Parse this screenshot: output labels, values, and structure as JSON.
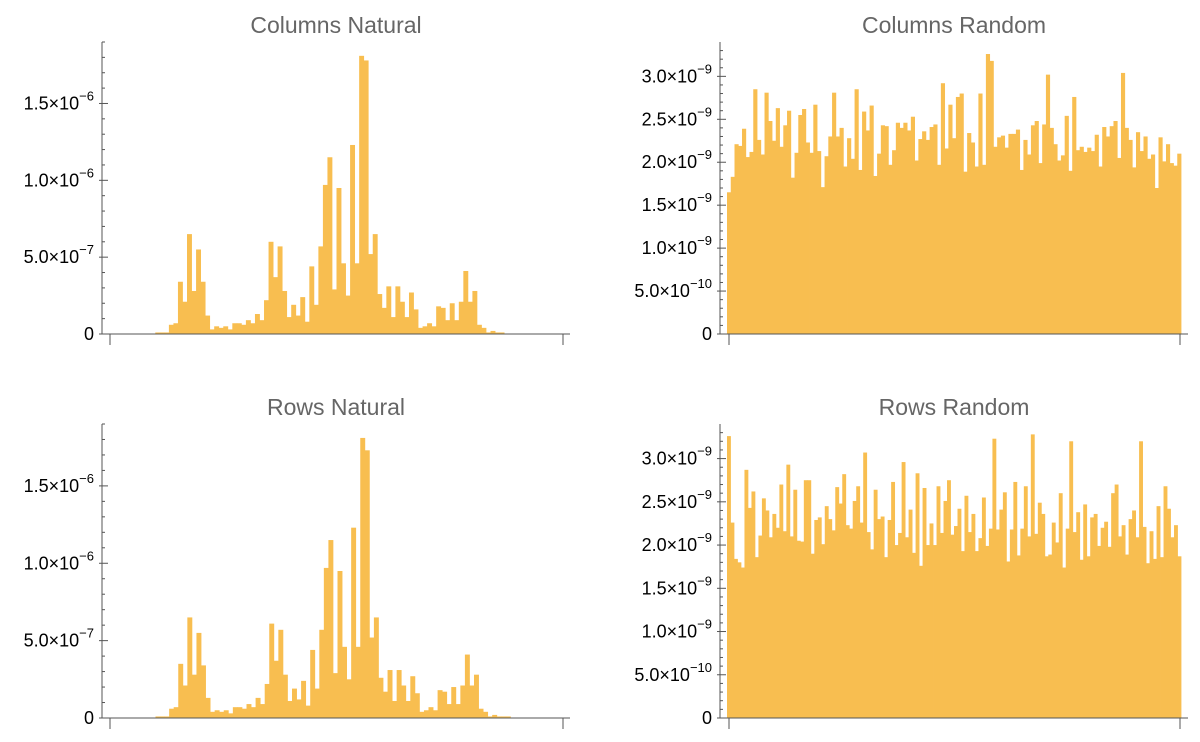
{
  "bar_color": "#f8be50",
  "chart_data": [
    {
      "type": "bar",
      "title": "Columns Natural",
      "xlabel": "",
      "ylabel": "",
      "ylim": [
        0,
        1.9e-06
      ],
      "yticks": [
        {
          "value": 0,
          "mantissa": "0",
          "exponent": ""
        },
        {
          "value": 5e-07,
          "mantissa": "5.0",
          "exponent": "−7"
        },
        {
          "value": 1e-06,
          "mantissa": "1.0",
          "exponent": "−6"
        },
        {
          "value": 1.5e-06,
          "mantissa": "1.5",
          "exponent": "−6"
        }
      ],
      "bin_unit": 1e-07,
      "values": [
        0,
        0,
        0,
        0,
        0,
        0,
        0,
        0,
        0,
        0,
        0.1,
        0.1,
        0.1,
        0.6,
        0.7,
        3.4,
        2.1,
        6.5,
        2.8,
        5.5,
        3.4,
        1.2,
        0.3,
        0.5,
        0.4,
        0.5,
        0.3,
        0.7,
        0.7,
        0.6,
        0.9,
        0.7,
        1.3,
        0.9,
        2.2,
        6.0,
        3.7,
        5.7,
        2.8,
        1.1,
        1.9,
        1.2,
        2.4,
        0.8,
        4.4,
        1.9,
        5.7,
        9.7,
        11.5,
        2.9,
        9.5,
        4.6,
        2.5,
        12.3,
        4.6,
        18.1,
        17.8,
        5.2,
        6.5,
        2.6,
        1.7,
        3.1,
        1.1,
        3.1,
        2.1,
        1.1,
        2.7,
        1.6,
        0.4,
        0.5,
        0.7,
        0.5,
        1.8,
        1.7,
        0.9,
        2.0,
        0.9,
        2.1,
        4.1,
        2.1,
        2.8,
        0.6,
        0.4,
        0.1,
        0.2,
        0.1,
        0.1,
        0,
        0,
        0,
        0,
        0,
        0,
        0,
        0,
        0,
        0,
        0,
        0,
        0
      ]
    },
    {
      "type": "bar",
      "title": "Columns Random",
      "xlabel": "",
      "ylabel": "",
      "ylim": [
        0,
        3.4e-09
      ],
      "yticks": [
        {
          "value": 0,
          "mantissa": "0",
          "exponent": ""
        },
        {
          "value": 5e-10,
          "mantissa": "5.0",
          "exponent": "−10"
        },
        {
          "value": 1e-09,
          "mantissa": "1.0",
          "exponent": "−9"
        },
        {
          "value": 1.5e-09,
          "mantissa": "1.5",
          "exponent": "−9"
        },
        {
          "value": 2e-09,
          "mantissa": "2.0",
          "exponent": "−9"
        },
        {
          "value": 2.5e-09,
          "mantissa": "2.5",
          "exponent": "−9"
        },
        {
          "value": 3e-09,
          "mantissa": "3.0",
          "exponent": "−9"
        }
      ],
      "bin_unit": 1e-10,
      "values": [
        16.5,
        18.3,
        22.1,
        21.9,
        23.9,
        20.6,
        21.2,
        28.5,
        22.6,
        20.9,
        28.1,
        24.8,
        22.5,
        26.3,
        21.8,
        24.3,
        26.0,
        18.2,
        21.1,
        25.5,
        26.2,
        22.3,
        21.1,
        26.7,
        21.3,
        17.1,
        20.7,
        23.0,
        28.1,
        23.0,
        24.0,
        19.5,
        22.8,
        20.4,
        28.5,
        19.1,
        25.9,
        23.7,
        26.6,
        18.4,
        21.0,
        24.3,
        24.2,
        19.7,
        21.4,
        24.6,
        24.0,
        24.6,
        23.7,
        25.3,
        20.2,
        22.7,
        23.6,
        22.6,
        24.1,
        24.4,
        19.7,
        29.2,
        21.6,
        26.7,
        22.8,
        27.6,
        28.0,
        18.9,
        23.4,
        22.3,
        19.5,
        28.0,
        19.7,
        32.6,
        31.8,
        21.8,
        22.9,
        23.1,
        21.7,
        23.3,
        23.3,
        23.8,
        19.1,
        22.6,
        20.9,
        24.3,
        24.8,
        19.9,
        24.4,
        30.2,
        24.0,
        22.1,
        20.2,
        20.8,
        25.4,
        19.0,
        27.6,
        21.4,
        21.8,
        21.2,
        21.7,
        21.3,
        23.2,
        19.5,
        24.1,
        23.0,
        24.2,
        24.8,
        20.5,
        30.4,
        24.0,
        22.6,
        19.4,
        23.5,
        21.3,
        23.0,
        20.4,
        20.9,
        17.0,
        22.9,
        20.1,
        22.1,
        19.9,
        19.6,
        21.0
      ]
    },
    {
      "type": "bar",
      "title": "Rows Natural",
      "xlabel": "",
      "ylabel": "",
      "ylim": [
        0,
        1.9e-06
      ],
      "yticks": [
        {
          "value": 0,
          "mantissa": "0",
          "exponent": ""
        },
        {
          "value": 5e-07,
          "mantissa": "5.0",
          "exponent": "−7"
        },
        {
          "value": 1e-06,
          "mantissa": "1.0",
          "exponent": "−6"
        },
        {
          "value": 1.5e-06,
          "mantissa": "1.5",
          "exponent": "−6"
        }
      ],
      "bin_unit": 1e-07,
      "values": [
        0,
        0,
        0,
        0,
        0,
        0,
        0,
        0,
        0,
        0,
        0.1,
        0.1,
        0.1,
        0.6,
        0.7,
        3.5,
        2.1,
        6.5,
        2.8,
        5.5,
        3.4,
        1.3,
        0.4,
        0.5,
        0.4,
        0.5,
        0.3,
        0.7,
        0.7,
        0.6,
        0.9,
        0.7,
        1.3,
        0.9,
        2.2,
        6.1,
        3.7,
        5.7,
        2.8,
        1.1,
        1.9,
        1.2,
        2.4,
        0.8,
        4.4,
        1.9,
        5.7,
        9.7,
        11.5,
        2.9,
        9.5,
        4.6,
        2.5,
        12.3,
        4.6,
        18.1,
        17.3,
        5.2,
        6.5,
        2.6,
        1.7,
        3.1,
        1.1,
        3.1,
        2.1,
        1.1,
        2.7,
        1.6,
        0.4,
        0.5,
        0.7,
        0.5,
        1.8,
        1.7,
        0.9,
        2.0,
        0.9,
        2.1,
        4.1,
        2.1,
        2.8,
        0.6,
        0.4,
        0.1,
        0.2,
        0.1,
        0.1,
        0.1,
        0,
        0,
        0,
        0,
        0,
        0,
        0,
        0,
        0,
        0,
        0,
        0
      ]
    },
    {
      "type": "bar",
      "title": "Rows Random",
      "xlabel": "",
      "ylabel": "",
      "ylim": [
        0,
        3.4e-09
      ],
      "yticks": [
        {
          "value": 0,
          "mantissa": "0",
          "exponent": ""
        },
        {
          "value": 5e-10,
          "mantissa": "5.0",
          "exponent": "−10"
        },
        {
          "value": 1e-09,
          "mantissa": "1.0",
          "exponent": "−9"
        },
        {
          "value": 1.5e-09,
          "mantissa": "1.5",
          "exponent": "−9"
        },
        {
          "value": 2e-09,
          "mantissa": "2.0",
          "exponent": "−9"
        },
        {
          "value": 2.5e-09,
          "mantissa": "2.5",
          "exponent": "−9"
        },
        {
          "value": 3e-09,
          "mantissa": "3.0",
          "exponent": "−9"
        }
      ],
      "bin_unit": 1e-10,
      "values": [
        32.6,
        22.6,
        18.4,
        18.0,
        17.4,
        28.7,
        24.3,
        26.2,
        18.6,
        21.1,
        25.4,
        24.0,
        20.9,
        23.6,
        22.0,
        27.0,
        21.6,
        29.3,
        21.0,
        26.4,
        20.5,
        20.4,
        27.5,
        27.5,
        19.0,
        22.9,
        23.2,
        20.1,
        24.5,
        23.0,
        21.7,
        26.7,
        24.8,
        28.2,
        22.3,
        21.9,
        25.1,
        26.8,
        22.6,
        30.7,
        21.5,
        19.5,
        26.4,
        23.0,
        23.3,
        18.6,
        22.9,
        27.3,
        20.0,
        21.4,
        29.6,
        20.9,
        24.1,
        19.1,
        28.3,
        17.6,
        26.6,
        20.0,
        22.5,
        20.0,
        26.8,
        21.4,
        25.1,
        27.5,
        21.2,
        22.2,
        24.2,
        19.3,
        25.7,
        21.5,
        23.6,
        19.3,
        20.8,
        25.5,
        19.9,
        21.9,
        32.3,
        21.8,
        24.1,
        26.1,
        18.1,
        21.8,
        27.3,
        18.8,
        21.9,
        26.8,
        21.0,
        32.8,
        21.3,
        24.9,
        23.6,
        18.7,
        18.9,
        22.6,
        20.3,
        26.0,
        17.4,
        21.9,
        32.0,
        21.5,
        23.8,
        18.3,
        24.7,
        18.7,
        23.2,
        23.6,
        19.9,
        22.0,
        22.7,
        19.8,
        26.0,
        27.0,
        21.0,
        22.3,
        18.9,
        23.0,
        24.0,
        20.9,
        32.0,
        22.1,
        17.9,
        21.6,
        18.4,
        24.5,
        18.6,
        26.8,
        24.2,
        20.9,
        22.3,
        18.7
      ]
    }
  ]
}
